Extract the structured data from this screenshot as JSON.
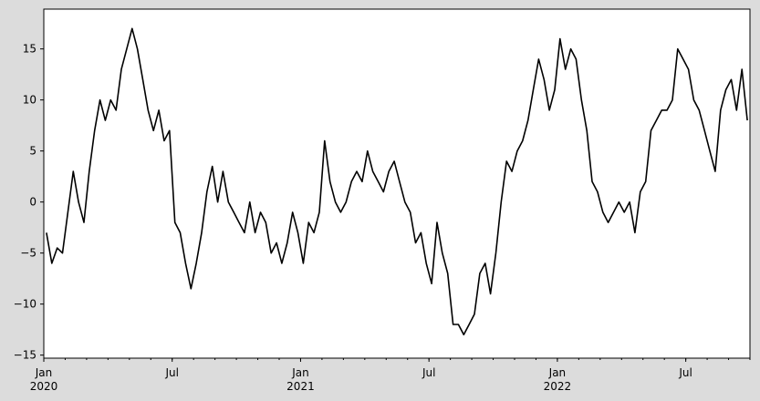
{
  "chart_data": {
    "type": "line",
    "x": [
      "2020-01",
      "2020-01",
      "2020-01",
      "2020-01",
      "2020-02",
      "2020-02",
      "2020-02",
      "2020-02",
      "2020-03",
      "2020-03",
      "2020-03",
      "2020-03",
      "2020-04",
      "2020-04",
      "2020-04",
      "2020-04",
      "2020-05",
      "2020-05",
      "2020-05",
      "2020-05",
      "2020-06",
      "2020-06",
      "2020-06",
      "2020-06",
      "2020-07",
      "2020-07",
      "2020-07",
      "2020-07",
      "2020-08",
      "2020-08",
      "2020-08",
      "2020-08",
      "2020-09",
      "2020-09",
      "2020-09",
      "2020-09",
      "2020-10",
      "2020-10",
      "2020-10",
      "2020-10",
      "2020-11",
      "2020-11",
      "2020-11",
      "2020-11",
      "2020-12",
      "2020-12",
      "2020-12",
      "2020-12",
      "2021-01",
      "2021-01",
      "2021-01",
      "2021-01",
      "2021-02",
      "2021-02",
      "2021-02",
      "2021-02",
      "2021-03",
      "2021-03",
      "2021-03",
      "2021-03",
      "2021-04",
      "2021-04",
      "2021-04",
      "2021-04",
      "2021-05",
      "2021-05",
      "2021-05",
      "2021-05",
      "2021-06",
      "2021-06",
      "2021-06",
      "2021-06",
      "2021-07",
      "2021-07",
      "2021-07",
      "2021-07",
      "2021-08",
      "2021-08",
      "2021-08",
      "2021-08",
      "2021-09",
      "2021-09",
      "2021-09",
      "2021-09",
      "2021-10",
      "2021-10",
      "2021-10",
      "2021-10",
      "2021-11",
      "2021-11",
      "2021-11",
      "2021-11",
      "2021-12",
      "2021-12",
      "2021-12",
      "2021-12",
      "2022-01",
      "2022-01",
      "2022-01",
      "2022-01",
      "2022-02",
      "2022-02",
      "2022-02",
      "2022-02",
      "2022-03",
      "2022-03",
      "2022-03",
      "2022-03",
      "2022-04",
      "2022-04",
      "2022-04",
      "2022-04",
      "2022-05",
      "2022-05",
      "2022-05",
      "2022-05",
      "2022-06",
      "2022-06",
      "2022-06",
      "2022-06",
      "2022-07",
      "2022-07",
      "2022-07",
      "2022-07",
      "2022-08",
      "2022-08",
      "2022-08",
      "2022-08",
      "2022-09",
      "2022-09",
      "2022-09",
      "2022-09"
    ],
    "series": [
      {
        "color": "#000000",
        "values": [
          -3,
          -6,
          -4.5,
          -5,
          -1,
          3,
          0,
          -2,
          3,
          7,
          10,
          8,
          10,
          9,
          13,
          15,
          17,
          15,
          12,
          9,
          7,
          9,
          6,
          7,
          -2,
          -3,
          -6,
          -8.5,
          -6,
          -3,
          1,
          3.5,
          0,
          3,
          0,
          -1,
          -2,
          -3,
          0,
          -3,
          -1,
          -2,
          -5,
          -4,
          -6,
          -4,
          -1,
          -3,
          -6,
          -2,
          -3,
          -1,
          6,
          2,
          0,
          -1,
          0,
          2,
          3,
          2,
          5,
          3,
          2,
          1,
          3,
          4,
          2,
          0,
          -1,
          -4,
          -3,
          -6,
          -8,
          -2,
          -5,
          -7,
          -12,
          -12,
          -13,
          -12,
          -11,
          -7,
          -6,
          -9,
          -5,
          0,
          4,
          3,
          5,
          6,
          8,
          11,
          14,
          12,
          9,
          11,
          16,
          13,
          15,
          14,
          10,
          7,
          2,
          1,
          -1,
          -2,
          -1,
          0,
          -1,
          0,
          -3,
          1,
          2,
          7,
          8,
          9,
          9,
          10,
          15,
          14,
          13,
          10,
          9,
          7,
          5,
          3,
          9,
          11,
          12,
          9,
          13,
          8
        ]
      }
    ],
    "xlim": [
      "2020-01",
      "2022-09"
    ],
    "xticks": [
      {
        "value": "2020-01",
        "label": "Jan",
        "year": "2020"
      },
      {
        "value": "2020-07",
        "label": "Jul"
      },
      {
        "value": "2021-01",
        "label": "Jan",
        "year": "2021"
      },
      {
        "value": "2021-07",
        "label": "Jul"
      },
      {
        "value": "2022-01",
        "label": "Jan",
        "year": "2022"
      },
      {
        "value": "2022-07",
        "label": "Jul"
      }
    ],
    "ylim": [
      -15.3,
      18.9
    ],
    "yticks": [
      {
        "value": -15,
        "label": "−15"
      },
      {
        "value": -10,
        "label": "−10"
      },
      {
        "value": -5,
        "label": "−5"
      },
      0,
      5,
      10,
      15
    ]
  }
}
